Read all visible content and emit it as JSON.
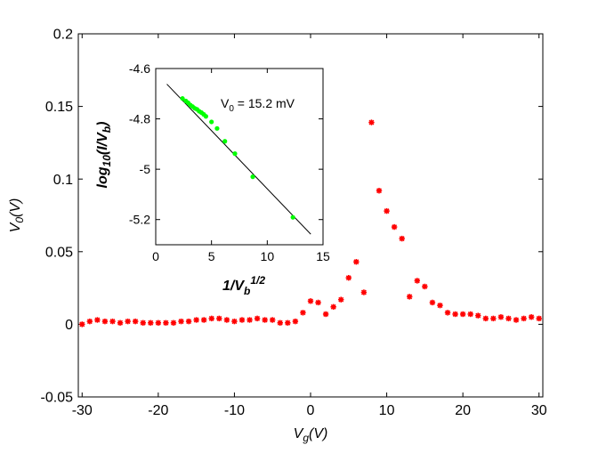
{
  "chart_data": [
    {
      "type": "scatter",
      "name": "main",
      "xlabel": "V",
      "xlabel_sub": "g",
      "xlabel_tail": "(V)",
      "ylabel": "V",
      "ylabel_sub": "0",
      "ylabel_tail": "(V)",
      "xlim": [
        -30.5,
        30.5
      ],
      "ylim": [
        -0.05,
        0.2
      ],
      "xticks": [
        -30,
        -20,
        -10,
        0,
        10,
        20,
        30
      ],
      "xtick_labels": [
        "-30",
        "-20",
        "-10",
        "0",
        "10",
        "20",
        "30"
      ],
      "yticks": [
        -0.05,
        0,
        0.05,
        0.1,
        0.15,
        0.2
      ],
      "ytick_labels": [
        "-0.05",
        "0",
        "0.05",
        "0.1",
        "0.15",
        "0.2"
      ],
      "marker": "*",
      "color": "#ff0000",
      "x": [
        -30,
        -29,
        -28,
        -27,
        -26,
        -25,
        -24,
        -23,
        -22,
        -21,
        -20,
        -19,
        -18,
        -17,
        -16,
        -15,
        -14,
        -13,
        -12,
        -11,
        -10,
        -9,
        -8,
        -7,
        -6,
        -5,
        -4,
        -3,
        -2,
        -1,
        0,
        1,
        2,
        3,
        4,
        5,
        6,
        7,
        8,
        9,
        10,
        11,
        12,
        13,
        14,
        15,
        16,
        17,
        18,
        19,
        20,
        21,
        22,
        23,
        24,
        25,
        26,
        27,
        28,
        29,
        30
      ],
      "y": [
        0.0,
        0.002,
        0.003,
        0.002,
        0.002,
        0.001,
        0.002,
        0.002,
        0.001,
        0.001,
        0.001,
        0.001,
        0.001,
        0.002,
        0.002,
        0.003,
        0.003,
        0.004,
        0.004,
        0.003,
        0.002,
        0.003,
        0.003,
        0.004,
        0.003,
        0.003,
        0.001,
        0.001,
        0.002,
        0.008,
        0.016,
        0.015,
        0.007,
        0.012,
        0.017,
        0.032,
        0.043,
        0.022,
        0.139,
        0.092,
        0.078,
        0.067,
        0.059,
        0.019,
        0.03,
        0.026,
        0.015,
        0.013,
        0.008,
        0.007,
        0.007,
        0.007,
        0.006,
        0.004,
        0.004,
        0.005,
        0.004,
        0.003,
        0.004,
        0.005,
        0.004
      ]
    },
    {
      "type": "scatter",
      "name": "inset",
      "xlabel": "1/V",
      "xlabel_sub": "b",
      "xlabel_sup": "1/2",
      "ylabel": "log",
      "ylabel_sub": "10",
      "ylabel_mid": "(I/V",
      "ylabel_sub2": "b",
      "ylabel_tail": ")",
      "xlim": [
        0,
        15
      ],
      "ylim": [
        -5.3,
        -4.6
      ],
      "xticks": [
        0,
        5,
        10,
        15
      ],
      "xtick_labels": [
        "0",
        "5",
        "10",
        "15"
      ],
      "yticks": [
        -4.6,
        -4.8,
        -5,
        -5.2
      ],
      "ytick_labels": [
        "-4.6",
        "-4.8",
        "-5",
        "-5.2"
      ],
      "annotation": "V",
      "annotation_sub": "0",
      "annotation_tail": " = 15.2 mV",
      "color": "#00ff00",
      "x": [
        2.4,
        2.7,
        2.9,
        3.1,
        3.3,
        3.5,
        3.7,
        3.9,
        4.1,
        4.3,
        4.5,
        5.0,
        5.5,
        6.2,
        7.1,
        8.7,
        12.3
      ],
      "y": [
        -4.719,
        -4.729,
        -4.736,
        -4.745,
        -4.751,
        -4.758,
        -4.762,
        -4.77,
        -4.775,
        -4.782,
        -4.79,
        -4.812,
        -4.838,
        -4.889,
        -4.938,
        -5.03,
        -5.191
      ],
      "fit_line": {
        "x": [
          1.0,
          13.9
        ],
        "y": [
          -4.662,
          -5.258
        ]
      }
    }
  ]
}
